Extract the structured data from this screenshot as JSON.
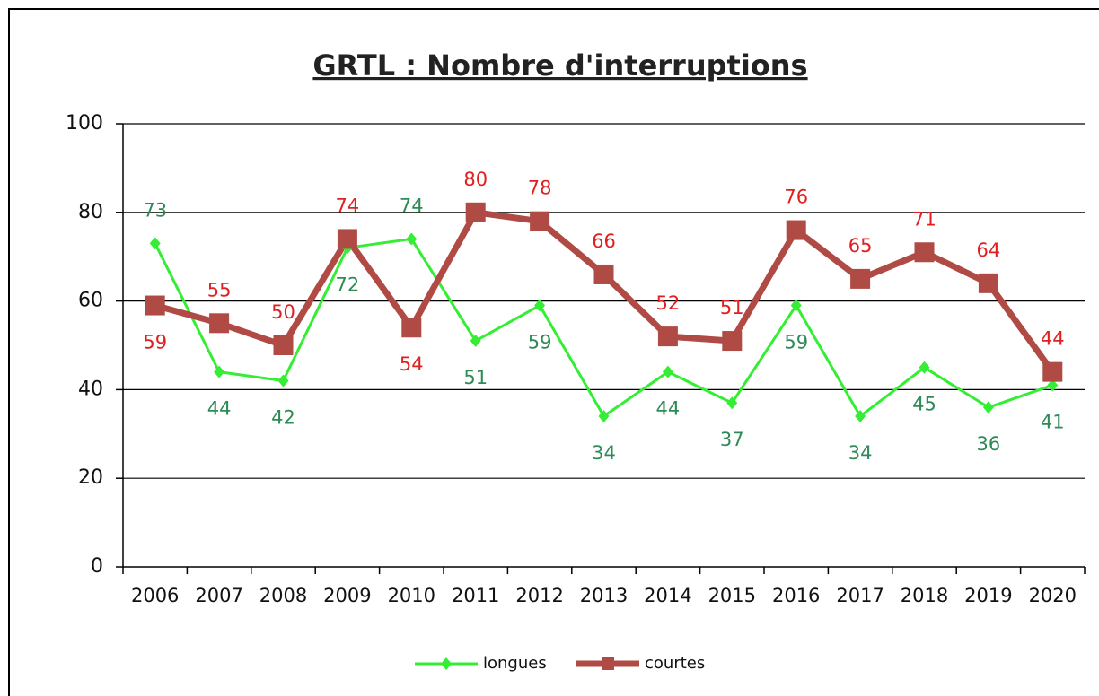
{
  "chart_data": {
    "type": "line",
    "title": "GRTL : Nombre d'interruptions",
    "categories": [
      "2006",
      "2007",
      "2008",
      "2009",
      "2010",
      "2011",
      "2012",
      "2013",
      "2014",
      "2015",
      "2016",
      "2017",
      "2018",
      "2019",
      "2020"
    ],
    "series": [
      {
        "name": "longues",
        "color": "#33ee33",
        "label_color": "#2e8b57",
        "values": [
          73,
          44,
          42,
          72,
          74,
          51,
          59,
          34,
          44,
          37,
          59,
          34,
          45,
          36,
          41
        ]
      },
      {
        "name": "courtes",
        "color": "#b04a44",
        "label_color": "#e02020",
        "values": [
          59,
          55,
          50,
          74,
          54,
          80,
          78,
          66,
          52,
          51,
          76,
          65,
          71,
          64,
          44
        ]
      }
    ],
    "ylim": [
      0,
      100
    ],
    "yticks": [
      0,
      20,
      40,
      60,
      80,
      100
    ],
    "grid": true,
    "legend": "bottom"
  }
}
